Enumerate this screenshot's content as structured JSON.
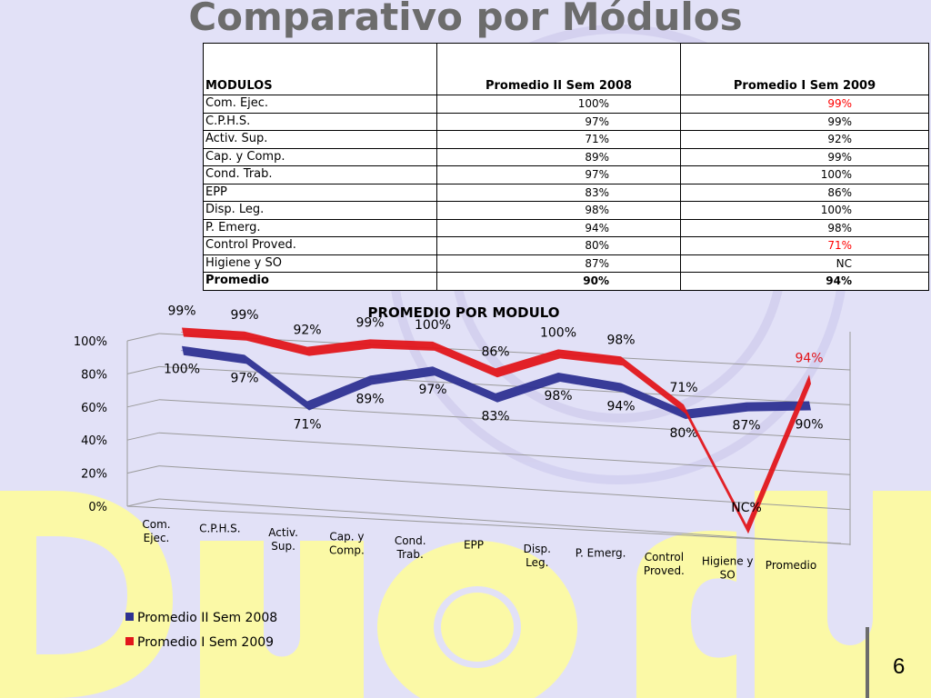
{
  "slide": {
    "title": "Comparativo por Módulos",
    "page_number": "6",
    "watermark_text": "Duoc UC"
  },
  "table": {
    "headers": [
      "MODULOS",
      "Promedio II Sem 2008",
      "Promedio I Sem 2009"
    ],
    "rows": [
      {
        "module": "Com. Ejec.",
        "sem2008": "100%",
        "sem2009": "99%",
        "sem2009_color": "#ff0000"
      },
      {
        "module": "C.P.H.S.",
        "sem2008": "97%",
        "sem2009": "99%"
      },
      {
        "module": "Activ. Sup.",
        "sem2008": "71%",
        "sem2009": "92%"
      },
      {
        "module": "Cap. y Comp.",
        "sem2008": "89%",
        "sem2009": "99%"
      },
      {
        "module": "Cond. Trab.",
        "sem2008": "97%",
        "sem2009": "100%"
      },
      {
        "module": "EPP",
        "sem2008": "83%",
        "sem2009": "86%"
      },
      {
        "module": "Disp. Leg.",
        "sem2008": "98%",
        "sem2009": "100%"
      },
      {
        "module": "P. Emerg.",
        "sem2008": "94%",
        "sem2009": "98%"
      },
      {
        "module": "Control Proved.",
        "sem2008": "80%",
        "sem2009": "71%",
        "sem2009_color": "#ff0000"
      },
      {
        "module": "Higiene y SO",
        "sem2008": "87%",
        "sem2009": "NC"
      },
      {
        "module": "Promedio",
        "sem2008": "90%",
        "sem2009": "94%",
        "bold": true
      }
    ]
  },
  "chart_data": {
    "type": "line",
    "title": "PROMEDIO POR MODULO",
    "categories": [
      "Com. Ejec.",
      "C.P.H.S.",
      "Activ. Sup.",
      "Cap. y Comp.",
      "Cond. Trab.",
      "EPP",
      "Disp. Leg.",
      "P. Emerg.",
      "Control Proved.",
      "Higiene y SO",
      "Promedio"
    ],
    "series": [
      {
        "name": "Promedio II Sem 2008",
        "color": "#2e3192",
        "values": [
          100,
          97,
          71,
          89,
          97,
          83,
          98,
          94,
          80,
          87,
          90
        ],
        "labels": [
          "100%",
          "97%",
          "71%",
          "89%",
          "97%",
          "83%",
          "98%",
          "94%",
          "80%",
          "87%",
          "90%"
        ]
      },
      {
        "name": "Promedio I Sem 2009",
        "color": "#e2161b",
        "values": [
          99,
          99,
          92,
          99,
          100,
          86,
          100,
          98,
          71,
          0,
          94
        ],
        "labels": [
          "99%",
          "99%",
          "92%",
          "99%",
          "100%",
          "86%",
          "100%",
          "98%",
          "71%",
          "NC%",
          "94%"
        ]
      }
    ],
    "yticks": [
      "0%",
      "20%",
      "40%",
      "60%",
      "80%",
      "100%"
    ],
    "ylim": [
      0,
      100
    ],
    "legend_position": "bottom-left",
    "style": "3d-line"
  }
}
